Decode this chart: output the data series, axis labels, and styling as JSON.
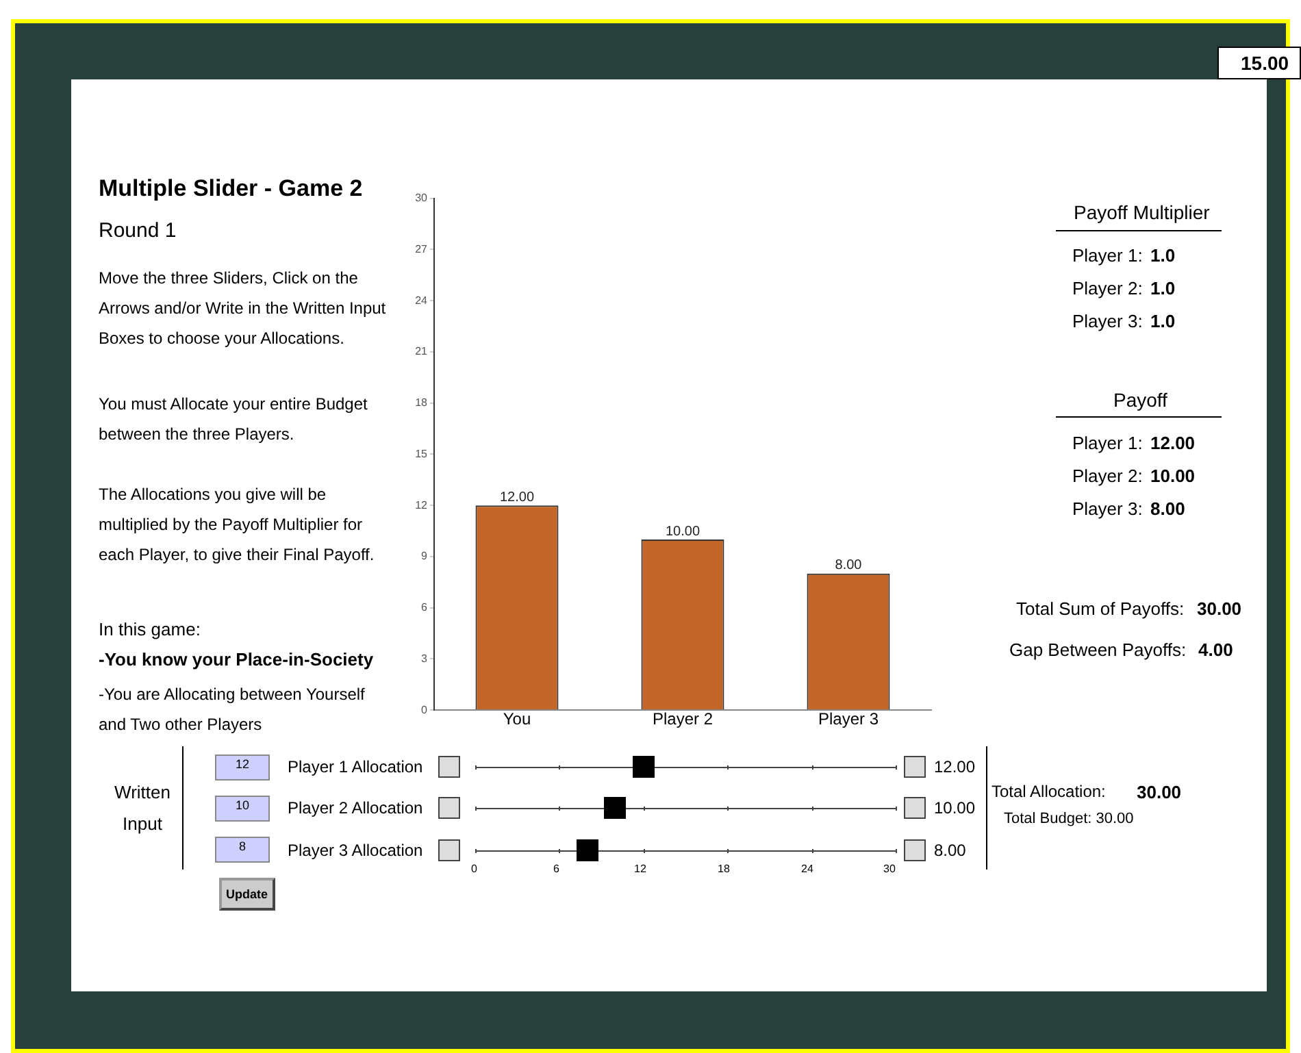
{
  "chart_data": {
    "type": "bar",
    "title": "Multiple Slider - Game 2",
    "subtitle": "Round 1",
    "categories": [
      "You",
      "Player 2",
      "Player 3"
    ],
    "values": [
      12,
      10,
      8
    ],
    "color": "#c4662a",
    "value_labels": [
      "12.00",
      "10.00",
      "8.00"
    ],
    "ylim": [
      0,
      30
    ],
    "yticks": [
      0,
      3,
      6,
      9,
      12,
      15,
      18,
      21,
      24,
      27,
      30
    ],
    "grid": false,
    "legend": false,
    "annotations": [
      "15.00",
      "Move the three Sliders, Click on the Arrows and/or Write in the Written Input Boxes to choose your Allocations.",
      "You must Allocate your entire Budget between the three Players.",
      "The Allocations you give will be multiplied by the Payoff Multiplier for each Player, to give their Final Payoff.",
      "In this game:",
      "-You know your Place-in-Society",
      "-You are Allocating between Yourself and Two other Players",
      "Payoff Multiplier",
      "Player 1:",
      "1.0",
      "Player 2:",
      "1.0",
      "Player 3:",
      "1.0",
      "Payoff",
      "Player 1:",
      "12.00",
      "Player 2:",
      "10.00",
      "Player 3:",
      "8.00",
      "Total Sum of Payoffs:",
      "30.00",
      "Gap Between Payoffs:",
      "4.00",
      "Written Input",
      "12",
      "10",
      "8",
      "Update",
      "Player 1 Allocation",
      "Player 2 Allocation",
      "Player 3 Allocation",
      "12.00",
      "10.00",
      "8.00",
      "Total Allocation:",
      "30.00",
      "Total Budget: 30.00",
      "0",
      "6",
      "12",
      "18",
      "24",
      "30"
    ]
  }
}
